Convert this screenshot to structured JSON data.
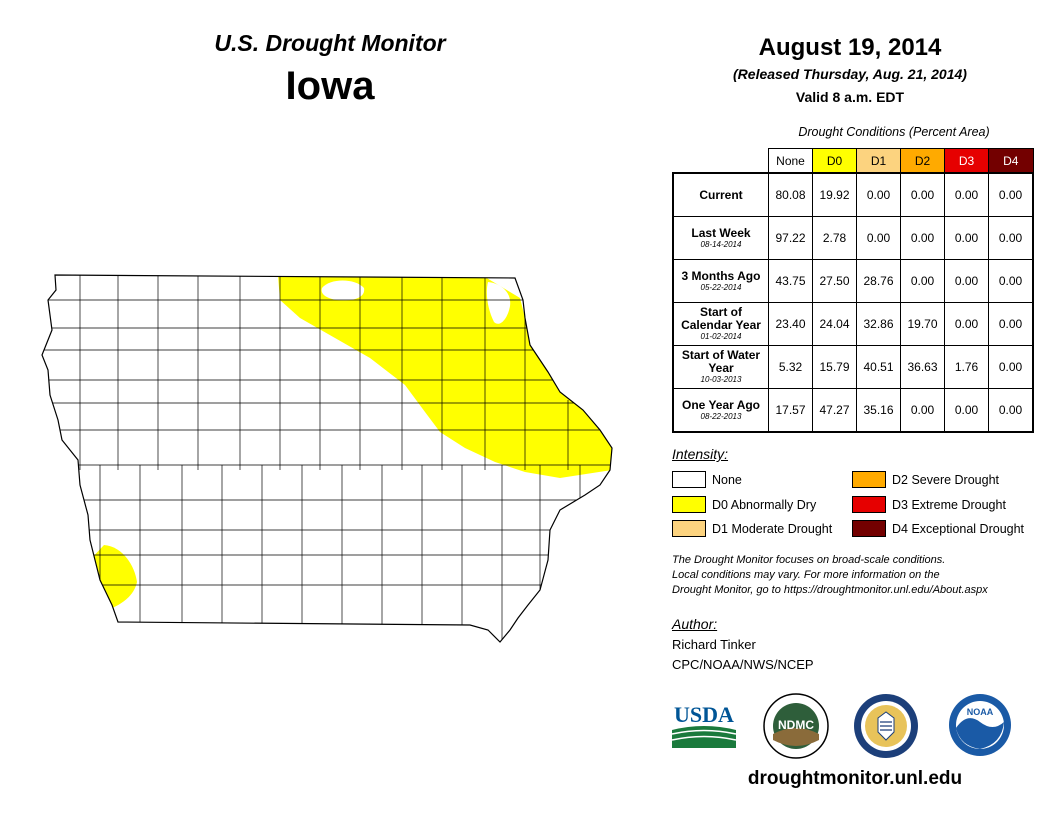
{
  "header": {
    "title": "U.S. Drought Monitor",
    "state": "Iowa",
    "date": "August 19, 2014",
    "released": "(Released Thursday, Aug. 21, 2014)",
    "valid": "Valid 8 a.m. EDT"
  },
  "table": {
    "caption": "Drought Conditions (Percent Area)",
    "columns": [
      {
        "label": "None",
        "color": "#ffffff",
        "text_color": "#000000"
      },
      {
        "label": "D0",
        "color": "#ffff00",
        "text_color": "#000000"
      },
      {
        "label": "D1",
        "color": "#fcd37f",
        "text_color": "#000000"
      },
      {
        "label": "D2",
        "color": "#ffaa00",
        "text_color": "#000000"
      },
      {
        "label": "D3",
        "color": "#e60000",
        "text_color": "#ffffff"
      },
      {
        "label": "D4",
        "color": "#730000",
        "text_color": "#ffffff"
      }
    ],
    "rows": [
      {
        "label": "Current",
        "date": "",
        "values": [
          "80.08",
          "19.92",
          "0.00",
          "0.00",
          "0.00",
          "0.00"
        ]
      },
      {
        "label": "Last Week",
        "date": "08-14-2014",
        "values": [
          "97.22",
          "2.78",
          "0.00",
          "0.00",
          "0.00",
          "0.00"
        ]
      },
      {
        "label": "3 Months Ago",
        "date": "05-22-2014",
        "values": [
          "43.75",
          "27.50",
          "28.76",
          "0.00",
          "0.00",
          "0.00"
        ]
      },
      {
        "label": "Start of Calendar Year",
        "date": "01-02-2014",
        "values": [
          "23.40",
          "24.04",
          "32.86",
          "19.70",
          "0.00",
          "0.00"
        ]
      },
      {
        "label": "Start of Water Year",
        "date": "10-03-2013",
        "values": [
          "5.32",
          "15.79",
          "40.51",
          "36.63",
          "1.76",
          "0.00"
        ]
      },
      {
        "label": "One Year Ago",
        "date": "08-22-2013",
        "values": [
          "17.57",
          "47.27",
          "35.16",
          "0.00",
          "0.00",
          "0.00"
        ]
      }
    ]
  },
  "legend": {
    "title": "Intensity:",
    "items": [
      {
        "label": "None",
        "color": "#ffffff"
      },
      {
        "label": "D0 Abnormally Dry",
        "color": "#ffff00"
      },
      {
        "label": "D1 Moderate Drought",
        "color": "#fcd37f"
      },
      {
        "label": "D2 Severe Drought",
        "color": "#ffaa00"
      },
      {
        "label": "D3 Extreme Drought",
        "color": "#e60000"
      },
      {
        "label": "D4 Exceptional Drought",
        "color": "#730000"
      }
    ]
  },
  "description": [
    "The Drought Monitor focuses on broad-scale conditions.",
    "Local conditions may vary. For more information on the",
    "Drought Monitor, go to https://droughtmonitor.unl.edu/About.aspx"
  ],
  "author": {
    "label": "Author:",
    "name": "Richard Tinker",
    "org": "CPC/NOAA/NWS/NCEP"
  },
  "logos": {
    "usda": "USDA",
    "ndmc": "NDMC",
    "noaa": "NOAA",
    "usda_color": "#005596",
    "usda_green": "#1a7a3c",
    "ndmc_color": "#2e5e3a",
    "noaa_color": "#1a5aa6"
  },
  "website": "droughtmonitor.unl.edu",
  "map": {
    "state": "Iowa",
    "regions": [
      {
        "category": "D0",
        "area": "northeast Iowa",
        "color": "#ffff00"
      },
      {
        "category": "D0",
        "area": "southwest Iowa",
        "color": "#ffff00"
      }
    ]
  }
}
